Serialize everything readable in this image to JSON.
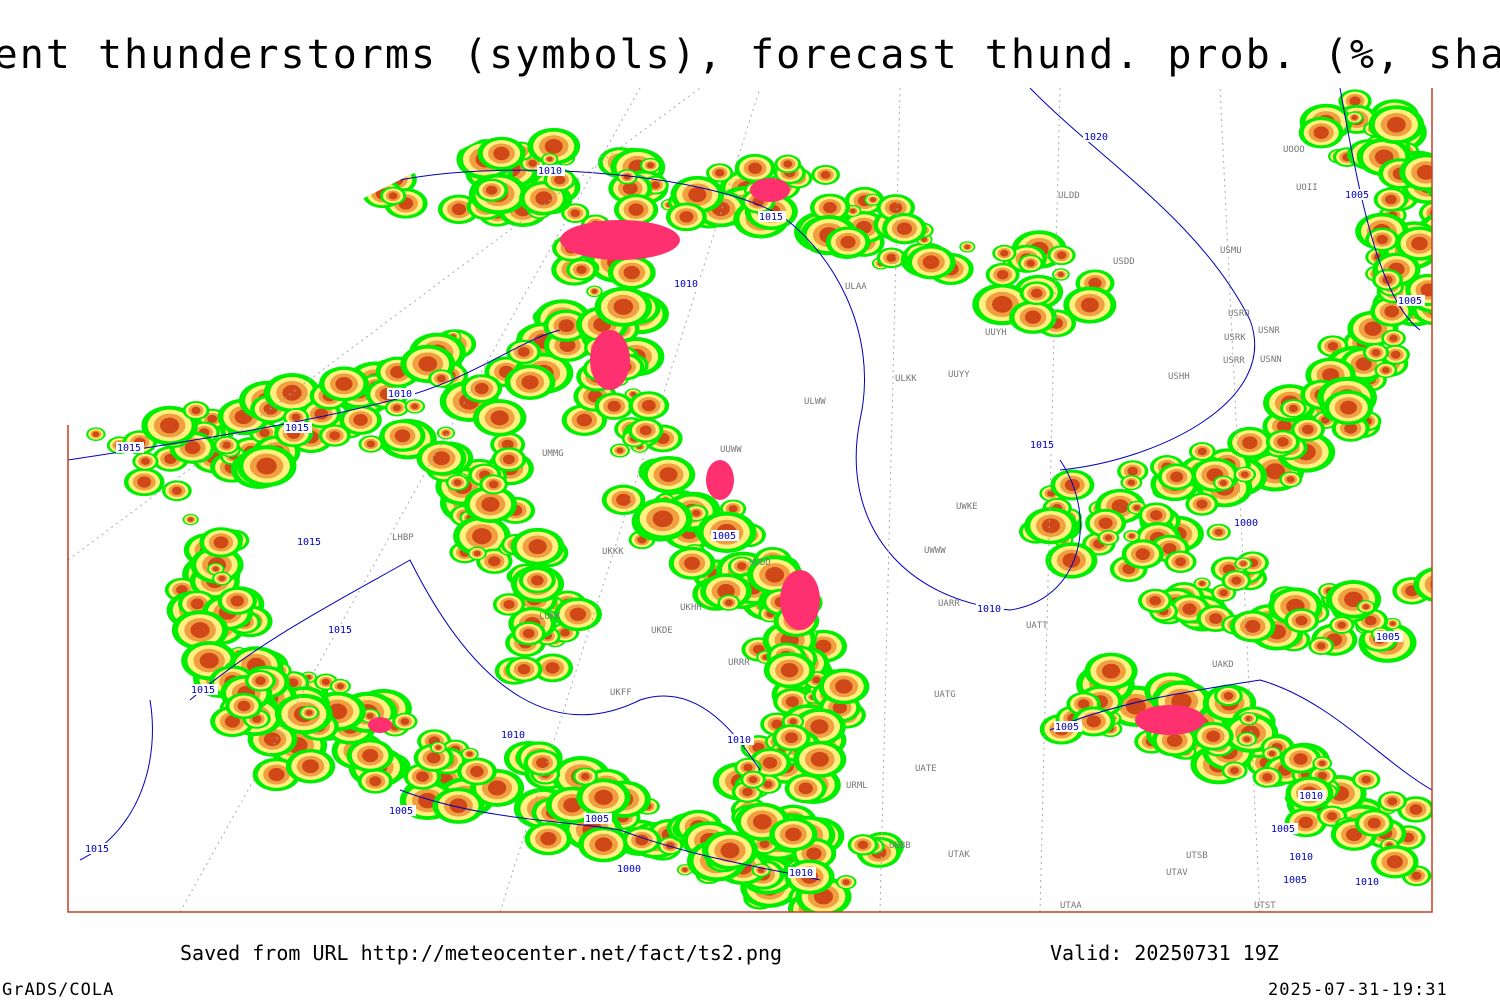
{
  "header": {
    "title": "Current thunderstorms (symbols), forecast thund. prob. (%, shaded)"
  },
  "footer": {
    "source": "Saved from URL http://meteocenter.net/fact/ts2.png",
    "valid": "Valid: 20250731 19Z",
    "software": "GrADS/COLA",
    "timestamp": "2025-07-31-19:31"
  },
  "stations": [
    "ULDD",
    "USDD",
    "ULAA",
    "UUYH",
    "ULKK",
    "UUYY",
    "ULWW",
    "USHH",
    "USRR",
    "USNN",
    "USRK",
    "USNR",
    "USRO",
    "USMU",
    "UOOO",
    "UOII",
    "UMMG",
    "LHBP",
    "LUKK",
    "UKKK",
    "UKDE",
    "UKHH",
    "UKFF",
    "UUDD",
    "UWWW",
    "UWKE",
    "UARR",
    "UATG",
    "UATE",
    "UATT",
    "UTAK",
    "UBBB",
    "URML",
    "URRR",
    "UTAA",
    "UTSB",
    "UTAV",
    "UTST",
    "UAKD",
    "UUWW"
  ],
  "isobars": [
    1020,
    1010,
    1015,
    1010,
    1005,
    1005,
    1010,
    1015,
    1015,
    1015,
    1000,
    1005,
    1015,
    1010,
    1015,
    1005,
    1015,
    1010,
    1005,
    1010,
    1005,
    1005,
    1010,
    1005,
    1010,
    1000,
    1010,
    1005,
    1010,
    1015
  ]
}
